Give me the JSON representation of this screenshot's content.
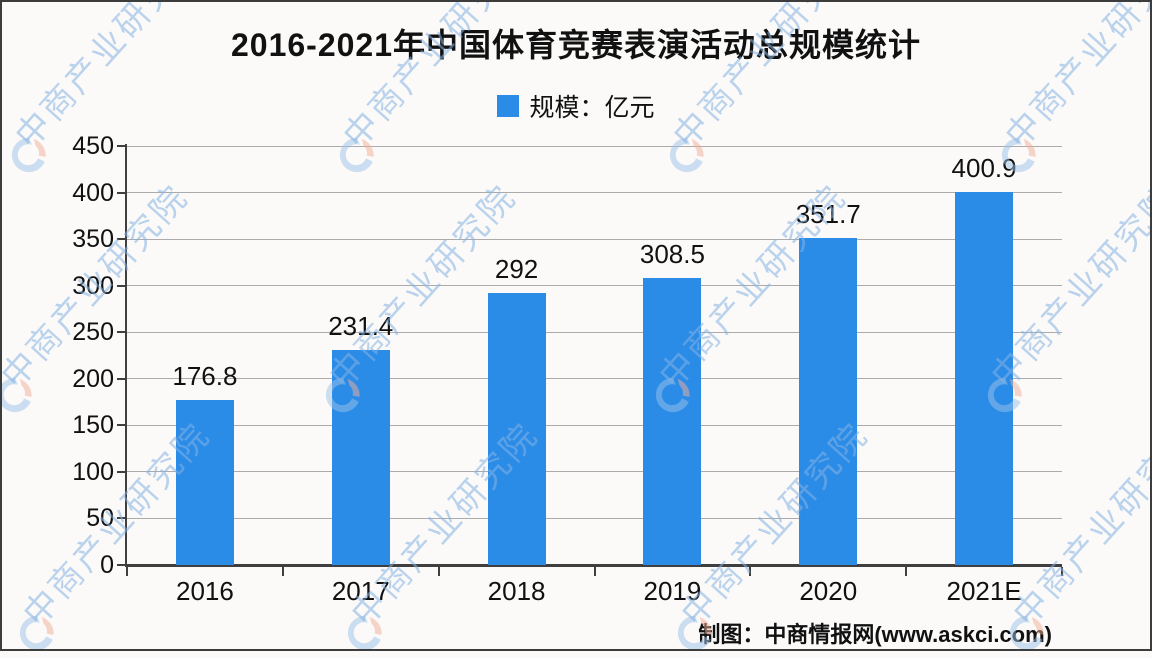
{
  "title": "2016-2021年中国体育竞赛表演活动总规模统计",
  "legend": {
    "label": "规模：亿元"
  },
  "footer": {
    "credit": "制图：中商情报网(www.askci.com)"
  },
  "watermark": {
    "text": "中商产业研究院",
    "logo": "askci-ring-logo"
  },
  "colors": {
    "bar": "#2b8ce8",
    "background": "#fbfaf9",
    "gridline": "#ababab",
    "axis": "#3f3f3f",
    "border": "#3c3c3c",
    "text": "#111111",
    "watermark_text": "#85b3e3",
    "watermark_logo_blue": "#9cc2e8",
    "watermark_logo_orange": "#f2ae96"
  },
  "chart_data": {
    "type": "bar",
    "title": "2016-2021年中国体育竞赛表演活动总规模统计",
    "categories": [
      "2016",
      "2017",
      "2018",
      "2019",
      "2020",
      "2021E"
    ],
    "values": [
      176.8,
      231.4,
      292,
      308.5,
      351.7,
      400.9
    ],
    "series_label": "规模：亿元",
    "unit": "亿元",
    "xlabel": "",
    "ylabel": "",
    "ylim": [
      0,
      450
    ],
    "ytick_step": 50,
    "yticks": [
      0,
      50,
      100,
      150,
      200,
      250,
      300,
      350,
      400,
      450
    ],
    "grid": true,
    "legend_position": "top",
    "value_labels": "above-bars"
  }
}
